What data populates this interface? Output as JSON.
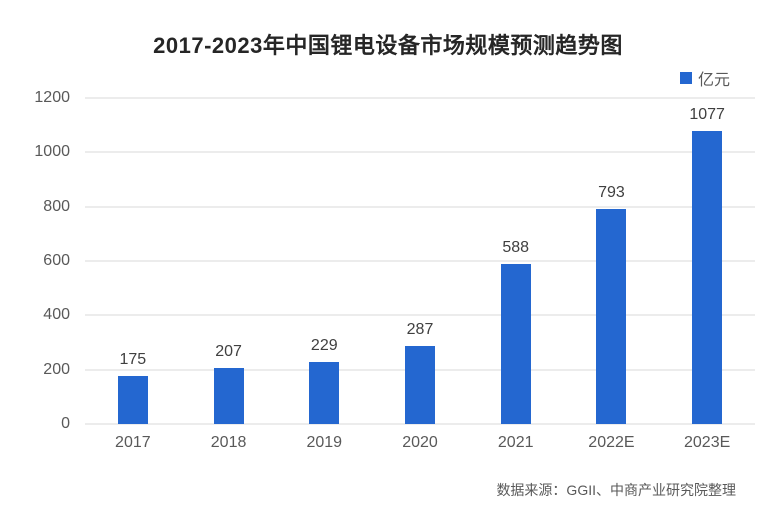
{
  "chart_data": {
    "type": "bar",
    "title": "2017-2023年中国锂电设备市场规模预测趋势图",
    "categories": [
      "2017",
      "2018",
      "2019",
      "2020",
      "2021",
      "2022E",
      "2023E"
    ],
    "values": [
      175,
      207,
      229,
      287,
      588,
      793,
      1077
    ],
    "series_name": "亿元",
    "unit": "亿元",
    "xlabel": "",
    "ylabel": "",
    "ylim": [
      0,
      1200
    ],
    "y_ticks": [
      0,
      200,
      400,
      600,
      800,
      1000,
      1200
    ],
    "grid": true,
    "legend_position": "top-right",
    "bar_color": "#2467d0",
    "gridline_color": "#d9d9d9",
    "title_color": "#262626",
    "label_color": "#404040",
    "axis_label_color": "#595959"
  },
  "footer": {
    "source": "数据来源：GGII、中商产业研究院整理"
  }
}
